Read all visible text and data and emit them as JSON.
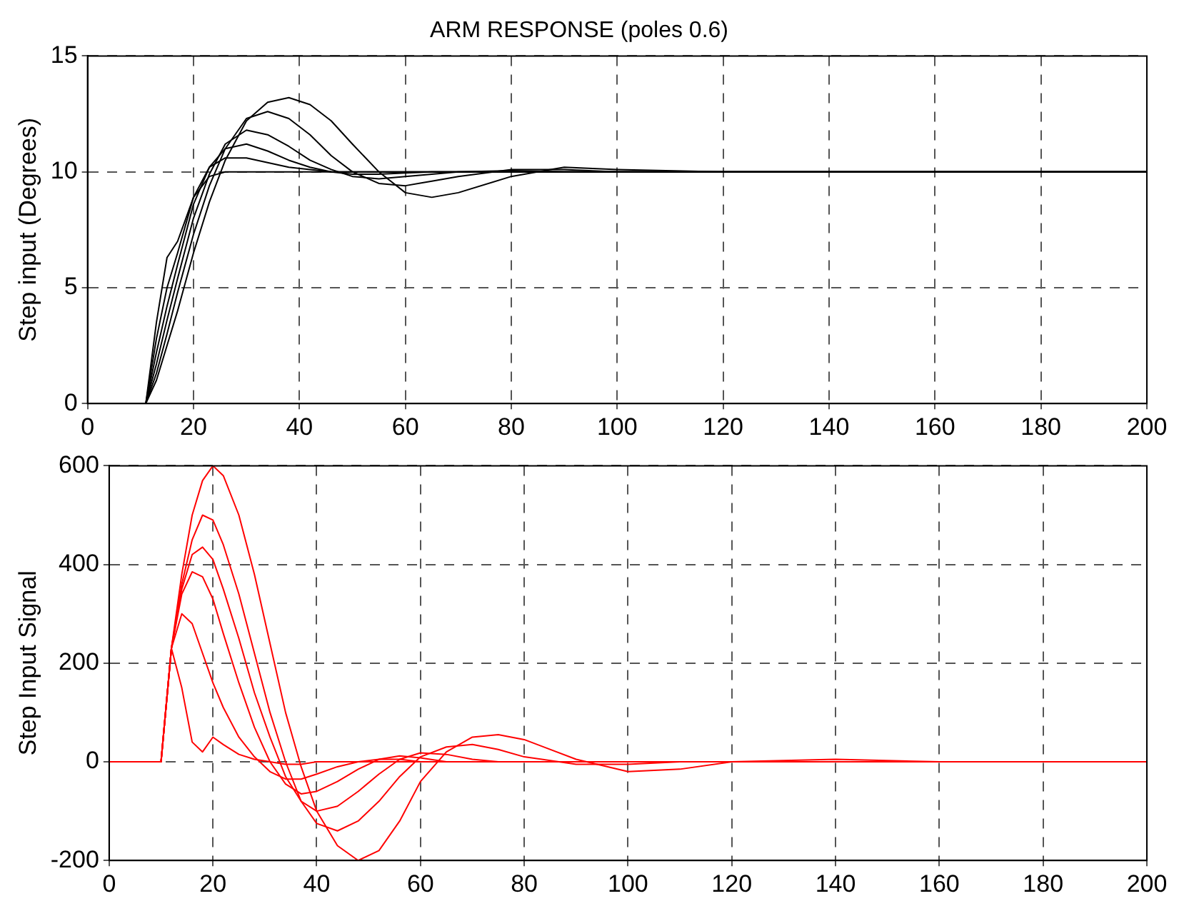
{
  "chart_data": [
    {
      "type": "line",
      "title": "ARM RESPONSE (poles 0.6)",
      "ylabel": "Step input (Degrees)",
      "grid": true,
      "marker": "none",
      "line_style": "solid",
      "xlim": [
        0,
        200
      ],
      "xticks": [
        0,
        20,
        40,
        60,
        80,
        100,
        120,
        140,
        160,
        180,
        200
      ],
      "ylim": [
        0,
        15
      ],
      "yticks": [
        0,
        5,
        10,
        15
      ],
      "x": [
        0,
        11,
        13,
        15,
        17,
        20,
        23,
        26,
        30,
        34,
        38,
        42,
        46,
        50,
        55,
        60,
        65,
        70,
        80,
        90,
        100,
        120,
        160,
        200
      ],
      "series": [
        {
          "color": "#000000",
          "values": [
            0,
            0,
            1,
            2.5,
            4,
            6.5,
            8.7,
            10.5,
            12.2,
            13.0,
            13.2,
            12.9,
            12.2,
            11.2,
            10.0,
            9.1,
            8.9,
            9.1,
            9.8,
            10.2,
            10.1,
            10,
            10,
            10
          ]
        },
        {
          "color": "#000000",
          "values": [
            0,
            0,
            1.3,
            3,
            4.8,
            7.3,
            9.4,
            11,
            12.3,
            12.6,
            12.3,
            11.6,
            10.7,
            10.0,
            9.5,
            9.4,
            9.6,
            9.8,
            10.1,
            10.1,
            10,
            10,
            10,
            10
          ]
        },
        {
          "color": "#000000",
          "values": [
            0,
            0,
            1.7,
            3.6,
            5.4,
            8,
            9.9,
            11.2,
            11.8,
            11.6,
            11.1,
            10.5,
            10.1,
            9.8,
            9.7,
            9.8,
            9.9,
            10,
            10.05,
            10,
            10,
            10,
            10,
            10
          ]
        },
        {
          "color": "#000000",
          "values": [
            0,
            0,
            2.2,
            4.2,
            6,
            8.6,
            10.2,
            11,
            11.2,
            10.9,
            10.5,
            10.2,
            10,
            9.9,
            9.9,
            9.95,
            10,
            10,
            10,
            10,
            10,
            10,
            10,
            10
          ]
        },
        {
          "color": "#000000",
          "values": [
            0,
            0,
            2.8,
            5,
            6.5,
            8.9,
            10.2,
            10.6,
            10.6,
            10.4,
            10.2,
            10.1,
            10,
            10,
            10,
            10,
            10,
            10,
            10,
            10,
            10,
            10,
            10,
            10
          ]
        },
        {
          "color": "#000000",
          "values": [
            0,
            0,
            3.5,
            6.3,
            7,
            8.9,
            9.8,
            10,
            10,
            10,
            10,
            10,
            10,
            10,
            10,
            10,
            10,
            10,
            10,
            10,
            10,
            10,
            10,
            10
          ]
        }
      ]
    },
    {
      "type": "line",
      "ylabel": "Step Input Signal",
      "grid": true,
      "marker": "none",
      "line_style": "solid",
      "xlim": [
        0,
        200
      ],
      "xticks": [
        0,
        20,
        40,
        60,
        80,
        100,
        120,
        140,
        160,
        180,
        200
      ],
      "ylim": [
        -200,
        600
      ],
      "yticks": [
        -200,
        0,
        200,
        400,
        600
      ],
      "x": [
        0,
        10,
        12,
        14,
        16,
        18,
        20,
        22,
        25,
        28,
        31,
        34,
        37,
        40,
        44,
        48,
        52,
        56,
        60,
        65,
        70,
        75,
        80,
        90,
        100,
        110,
        120,
        140,
        160,
        200
      ],
      "series": [
        {
          "color": "#ff0000",
          "values": [
            0,
            0,
            230,
            380,
            500,
            570,
            600,
            580,
            500,
            380,
            240,
            100,
            -10,
            -100,
            -170,
            -200,
            -180,
            -120,
            -40,
            20,
            50,
            55,
            45,
            5,
            -20,
            -15,
            0,
            5,
            0,
            0
          ]
        },
        {
          "color": "#ff0000",
          "values": [
            0,
            0,
            230,
            360,
            450,
            500,
            490,
            440,
            340,
            220,
            100,
            0,
            -80,
            -125,
            -140,
            -120,
            -80,
            -30,
            10,
            30,
            35,
            25,
            10,
            -5,
            -5,
            0,
            0,
            0,
            0,
            0
          ]
        },
        {
          "color": "#ff0000",
          "values": [
            0,
            0,
            230,
            350,
            420,
            435,
            410,
            350,
            250,
            140,
            50,
            -30,
            -80,
            -100,
            -90,
            -60,
            -25,
            5,
            18,
            15,
            5,
            0,
            0,
            0,
            0,
            0,
            0,
            0,
            0,
            0
          ]
        },
        {
          "color": "#ff0000",
          "values": [
            0,
            0,
            230,
            340,
            385,
            375,
            330,
            260,
            160,
            70,
            0,
            -45,
            -65,
            -60,
            -40,
            -15,
            5,
            12,
            8,
            0,
            0,
            0,
            0,
            0,
            0,
            0,
            0,
            0,
            0,
            0
          ]
        },
        {
          "color": "#ff0000",
          "values": [
            0,
            0,
            230,
            300,
            280,
            220,
            160,
            110,
            50,
            10,
            -20,
            -35,
            -35,
            -25,
            -10,
            0,
            5,
            5,
            0,
            0,
            0,
            0,
            0,
            0,
            0,
            0,
            0,
            0,
            0,
            0
          ]
        },
        {
          "color": "#ff0000",
          "values": [
            0,
            0,
            230,
            150,
            40,
            20,
            50,
            35,
            15,
            5,
            0,
            -5,
            -5,
            0,
            0,
            0,
            0,
            0,
            0,
            0,
            0,
            0,
            0,
            0,
            0,
            0,
            0,
            0,
            0,
            0
          ]
        }
      ]
    }
  ]
}
